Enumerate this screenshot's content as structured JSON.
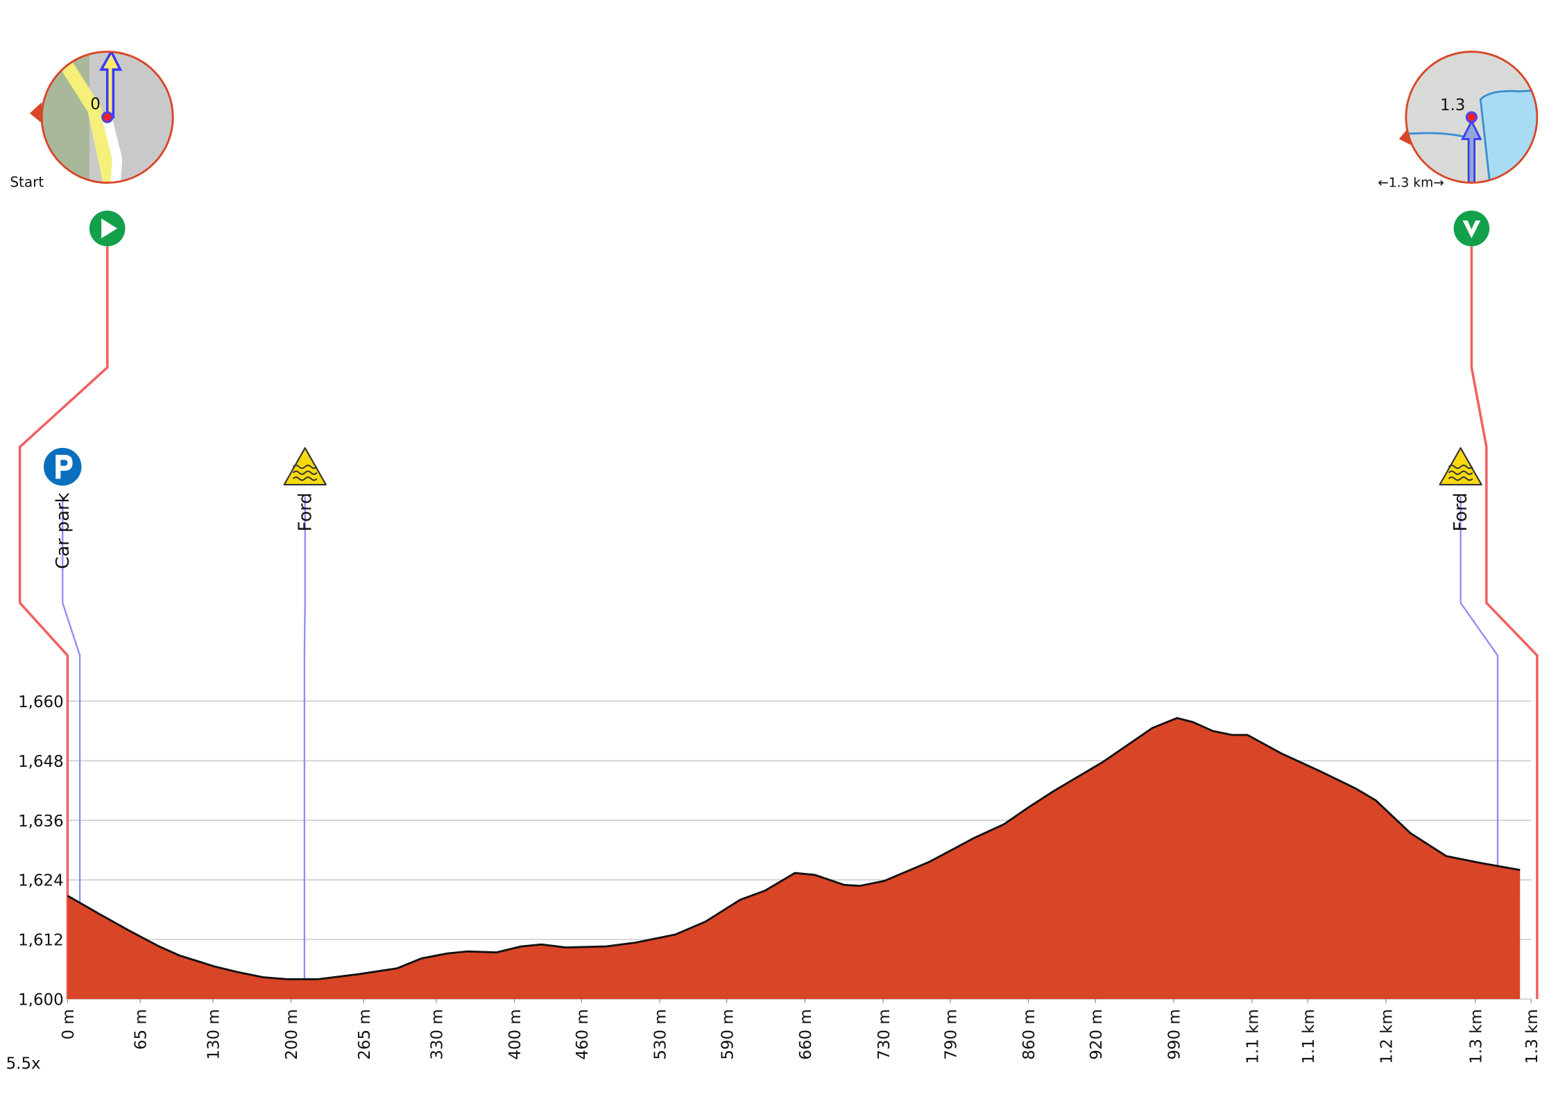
{
  "chart_data": {
    "type": "area",
    "x": [
      0,
      28,
      55,
      82,
      100,
      117,
      131,
      153,
      175,
      197,
      224,
      260,
      295,
      317,
      340,
      358,
      384,
      406,
      424,
      446,
      482,
      509,
      544,
      571,
      602,
      624,
      651,
      669,
      695,
      709,
      731,
      771,
      811,
      838,
      860,
      882,
      927,
      971,
      993,
      1007,
      1025,
      1042,
      1056,
      1087,
      1122,
      1153,
      1171,
      1202,
      1234,
      1265,
      1300
    ],
    "values": [
      1620.8,
      1617.2,
      1613.8,
      1610.6,
      1608.8,
      1607.6,
      1606.6,
      1605.4,
      1604.4,
      1604,
      1604,
      1605,
      1606.2,
      1608.2,
      1609.2,
      1609.6,
      1609.4,
      1610.6,
      1611,
      1610.4,
      1610.6,
      1611.4,
      1613,
      1615.6,
      1620,
      1621.8,
      1625.4,
      1625,
      1623,
      1622.8,
      1623.8,
      1627.6,
      1632.4,
      1635.2,
      1638.6,
      1641.8,
      1647.8,
      1654.6,
      1656.6,
      1655.8,
      1654,
      1653.2,
      1653.2,
      1649.4,
      1645.8,
      1642.4,
      1640,
      1633.4,
      1628.8,
      1627.4,
      1626
    ],
    "color": "#d94527",
    "xlim": [
      0,
      1310
    ],
    "xticks": [
      {
        "value": 0,
        "label": "0 m"
      },
      {
        "value": 65,
        "label": "65 m"
      },
      {
        "value": 130,
        "label": "130 m"
      },
      {
        "value": 200,
        "label": "200 m"
      },
      {
        "value": 265,
        "label": "265 m"
      },
      {
        "value": 330,
        "label": "330 m"
      },
      {
        "value": 400,
        "label": "400 m"
      },
      {
        "value": 460,
        "label": "460 m"
      },
      {
        "value": 530,
        "label": "530 m"
      },
      {
        "value": 590,
        "label": "590 m"
      },
      {
        "value": 660,
        "label": "660 m"
      },
      {
        "value": 730,
        "label": "730 m"
      },
      {
        "value": 790,
        "label": "790 m"
      },
      {
        "value": 860,
        "label": "860 m"
      },
      {
        "value": 920,
        "label": "920 m"
      },
      {
        "value": 990,
        "label": "990 m"
      },
      {
        "value": 1060,
        "label": "1.1 km"
      },
      {
        "value": 1110,
        "label": "1.1 km"
      },
      {
        "value": 1180,
        "label": "1.2 km"
      },
      {
        "value": 1260,
        "label": "1.3 km"
      },
      {
        "value": 1310,
        "label": "1.3 km"
      }
    ],
    "ylim": [
      1600,
      1660
    ],
    "yticks": [
      {
        "value": 1600,
        "label": "1,600"
      },
      {
        "value": 1612,
        "label": "1,612"
      },
      {
        "value": 1624,
        "label": "1,624"
      },
      {
        "value": 1636,
        "label": "1,636"
      },
      {
        "value": 1648,
        "label": "1,648"
      },
      {
        "value": 1660,
        "label": "1,660"
      }
    ],
    "grid": true,
    "annotations": [
      {
        "label": "Car park",
        "x": 11,
        "icon": "parking"
      },
      {
        "label": "Ford",
        "x": 212,
        "icon": "ford"
      },
      {
        "label": "Ford",
        "x": 1280,
        "icon": "ford"
      }
    ],
    "start": {
      "label": "Start",
      "map_label": "0",
      "x": 0
    },
    "finish": {
      "map_label": "1.3",
      "scale_label": "←1.3 km→",
      "x": 1310
    },
    "zoom_label": "5.5x"
  }
}
